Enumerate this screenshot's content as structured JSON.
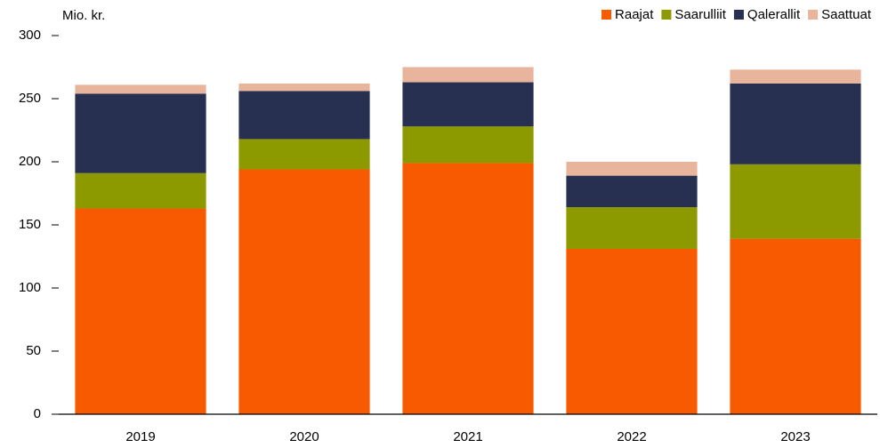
{
  "chart_data": {
    "type": "stacked_bar",
    "y_label": "Mio. kr.",
    "categories": [
      "2019",
      "2020",
      "2021",
      "2022",
      "2023"
    ],
    "series": [
      {
        "name": "Raajat",
        "color": "#f75a00",
        "values": [
          163,
          194,
          199,
          131,
          139
        ]
      },
      {
        "name": "Saarulliit",
        "color": "#8c9a00",
        "values": [
          28,
          24,
          29,
          33,
          59
        ]
      },
      {
        "name": "Qalerallit",
        "color": "#283052",
        "values": [
          63,
          38,
          35,
          25,
          64
        ]
      },
      {
        "name": "Saattuat",
        "color": "#e8b59c",
        "values": [
          7,
          6,
          12,
          11,
          11
        ]
      }
    ],
    "ylim": [
      0,
      300
    ],
    "yticks": [
      0,
      50,
      100,
      150,
      200,
      250,
      300
    ],
    "grid": false,
    "legend": "top-right"
  }
}
